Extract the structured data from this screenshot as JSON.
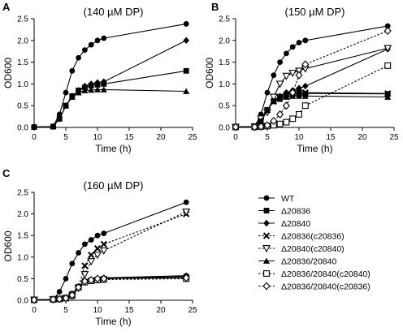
{
  "chart_data": [
    {
      "panel": "A",
      "type": "line",
      "title": "(140 µM DP)",
      "xlabel": "Time (h)",
      "ylabel": "OD600",
      "xlim": [
        0,
        25
      ],
      "ylim": [
        0,
        2.5
      ],
      "x_ticks": [
        0,
        5,
        10,
        15,
        20,
        25
      ],
      "y_ticks": [
        0.0,
        0.5,
        1.0,
        1.5,
        2.0,
        2.5
      ],
      "series": [
        {
          "name": "WT",
          "marker": "circle",
          "dashed": false,
          "x": [
            0,
            3,
            4,
            5,
            6,
            7,
            8,
            9,
            10,
            11,
            24
          ],
          "y": [
            0.01,
            0.02,
            0.3,
            0.8,
            1.3,
            1.6,
            1.78,
            1.9,
            2.0,
            2.05,
            2.38
          ]
        },
        {
          "name": "Δ20836",
          "marker": "square",
          "dashed": false,
          "x": [
            0,
            3,
            4,
            5,
            6,
            7,
            8,
            9,
            10,
            11,
            24
          ],
          "y": [
            0.01,
            0.02,
            0.2,
            0.5,
            0.72,
            0.85,
            0.92,
            0.96,
            0.98,
            1.0,
            1.3
          ]
        },
        {
          "name": "Δ20840",
          "marker": "diamond",
          "dashed": false,
          "x": [
            0,
            3,
            4,
            5,
            6,
            7,
            8,
            9,
            10,
            11,
            24
          ],
          "y": [
            0.01,
            0.02,
            0.2,
            0.5,
            0.72,
            0.85,
            0.95,
            1.0,
            1.03,
            1.05,
            2.0
          ]
        },
        {
          "name": "Δ20836/20840",
          "marker": "triangle",
          "dashed": false,
          "x": [
            0,
            3,
            4,
            5,
            6,
            7,
            8,
            9,
            10,
            11,
            24
          ],
          "y": [
            0.01,
            0.02,
            0.2,
            0.5,
            0.7,
            0.8,
            0.85,
            0.86,
            0.87,
            0.87,
            0.83
          ]
        }
      ]
    },
    {
      "panel": "B",
      "type": "line",
      "title": "(150 µM DP)",
      "xlabel": "Time (h)",
      "ylabel": "OD600",
      "xlim": [
        0,
        25
      ],
      "ylim": [
        0,
        2.5
      ],
      "x_ticks": [
        0,
        5,
        10,
        15,
        20,
        25
      ],
      "y_ticks": [
        0.0,
        0.5,
        1.0,
        1.5,
        2.0,
        2.5
      ],
      "series": [
        {
          "name": "WT",
          "marker": "circle",
          "dashed": false,
          "x": [
            0,
            3,
            4,
            5,
            6,
            7,
            8,
            9,
            10,
            11,
            24
          ],
          "y": [
            0.01,
            0.02,
            0.3,
            0.8,
            1.2,
            1.5,
            1.7,
            1.85,
            1.95,
            2.0,
            2.33
          ]
        },
        {
          "name": "Δ20836",
          "marker": "square",
          "dashed": false,
          "x": [
            0,
            3,
            4,
            5,
            6,
            7,
            8,
            9,
            10,
            11,
            24
          ],
          "y": [
            0.01,
            0.02,
            0.2,
            0.4,
            0.6,
            0.7,
            0.75,
            0.78,
            0.78,
            0.78,
            0.77
          ]
        },
        {
          "name": "Δ20840",
          "marker": "diamond",
          "dashed": false,
          "x": [
            0,
            3,
            4,
            5,
            6,
            7,
            8,
            9,
            10,
            11,
            24
          ],
          "y": [
            0.01,
            0.02,
            0.2,
            0.4,
            0.62,
            0.72,
            0.8,
            0.85,
            0.9,
            0.95,
            1.8
          ]
        },
        {
          "name": "Δ20836(c20836)",
          "marker": "x",
          "dashed": false,
          "x": [
            0,
            3,
            4,
            5,
            6,
            7,
            8,
            9,
            10,
            11,
            24
          ],
          "y": [
            0.01,
            0.02,
            0.15,
            0.4,
            0.6,
            0.7,
            0.75,
            0.78,
            0.8,
            0.8,
            0.78
          ]
        },
        {
          "name": "Δ20840(c20840)",
          "marker": "triangle-down",
          "dashed": false,
          "x": [
            0,
            3,
            4,
            5,
            6,
            7,
            8,
            9,
            10,
            11,
            24
          ],
          "y": [
            0.01,
            0.02,
            0.2,
            0.35,
            0.7,
            1.0,
            1.18,
            1.25,
            1.3,
            1.35,
            1.82
          ]
        },
        {
          "name": "Δ20836/20840",
          "marker": "triangle",
          "dashed": false,
          "x": [
            0,
            3,
            4,
            5,
            6,
            7,
            8,
            9,
            10,
            11,
            24
          ],
          "y": [
            0.01,
            0.02,
            0.15,
            0.4,
            0.6,
            0.65,
            0.7,
            0.72,
            0.72,
            0.72,
            0.7
          ]
        },
        {
          "name": "Δ20836/20840(c20840)",
          "marker": "square-open",
          "dashed": true,
          "x": [
            0,
            3,
            4,
            5,
            6,
            7,
            8,
            9,
            10,
            11,
            24
          ],
          "y": [
            0.01,
            0.01,
            0.02,
            0.03,
            0.05,
            0.08,
            0.12,
            0.2,
            0.3,
            0.5,
            1.42
          ]
        },
        {
          "name": "Δ20836/20840(c20836)",
          "marker": "diamond-open",
          "dashed": true,
          "x": [
            0,
            3,
            4,
            5,
            6,
            7,
            8,
            9,
            10,
            11,
            24
          ],
          "y": [
            0.01,
            0.01,
            0.02,
            0.05,
            0.15,
            0.3,
            0.5,
            0.8,
            1.2,
            1.45,
            2.22
          ]
        }
      ]
    },
    {
      "panel": "C",
      "type": "line",
      "title": "(160 µM DP)",
      "xlabel": "Time (h)",
      "ylabel": "OD600",
      "xlim": [
        0,
        25
      ],
      "ylim": [
        0,
        2.5
      ],
      "x_ticks": [
        0,
        5,
        10,
        15,
        20,
        25
      ],
      "y_ticks": [
        0.0,
        0.5,
        1.0,
        1.5,
        2.0,
        2.5
      ],
      "legend": "right",
      "series": [
        {
          "name": "WT",
          "marker": "circle",
          "dashed": false,
          "x": [
            0,
            3,
            4,
            5,
            6,
            7,
            8,
            9,
            10,
            11,
            24
          ],
          "y": [
            0.01,
            0.02,
            0.2,
            0.5,
            0.85,
            1.1,
            1.3,
            1.4,
            1.5,
            1.55,
            2.27
          ]
        },
        {
          "name": "Δ20836",
          "marker": "square",
          "dashed": false,
          "x": [
            0,
            3,
            4,
            5,
            6,
            7,
            8,
            9,
            10,
            11,
            24
          ],
          "y": [
            0.01,
            0.02,
            0.03,
            0.06,
            0.15,
            0.3,
            0.42,
            0.46,
            0.48,
            0.5,
            0.55
          ]
        },
        {
          "name": "Δ20840",
          "marker": "diamond",
          "dashed": false,
          "x": [
            0,
            3,
            4,
            5,
            6,
            7,
            8,
            9,
            10,
            11,
            24
          ],
          "y": [
            0.01,
            0.02,
            0.03,
            0.06,
            0.15,
            0.32,
            0.44,
            0.48,
            0.5,
            0.52,
            0.57
          ]
        },
        {
          "name": "Δ20836(c20836)",
          "marker": "x",
          "dashed": true,
          "x": [
            0,
            3,
            4,
            5,
            6,
            7,
            8,
            9,
            10,
            11,
            24
          ],
          "y": [
            0.01,
            0.02,
            0.03,
            0.05,
            0.1,
            0.3,
            0.8,
            1.05,
            1.2,
            1.3,
            2.0
          ]
        },
        {
          "name": "Δ20840(c20840)",
          "marker": "triangle-down",
          "dashed": true,
          "x": [
            0,
            3,
            4,
            5,
            6,
            7,
            8,
            9,
            10,
            11,
            24
          ],
          "y": [
            0.01,
            0.02,
            0.03,
            0.05,
            0.1,
            0.28,
            0.6,
            0.9,
            1.05,
            1.15,
            2.05
          ]
        },
        {
          "name": "Δ20836/20840",
          "marker": "triangle",
          "dashed": false,
          "x": [
            0,
            3,
            4,
            5,
            6,
            7,
            8,
            9,
            10,
            11,
            24
          ],
          "y": [
            0.01,
            0.02,
            0.03,
            0.06,
            0.15,
            0.3,
            0.44,
            0.48,
            0.5,
            0.51,
            0.52
          ]
        },
        {
          "name": "Δ20836/20840(c20840)",
          "marker": "square-open",
          "dashed": true,
          "x": [
            0,
            3,
            4,
            5,
            6,
            7,
            8,
            9,
            10,
            11,
            24
          ],
          "y": [
            0.01,
            0.02,
            0.03,
            0.05,
            0.12,
            0.3,
            0.42,
            0.45,
            0.47,
            0.48,
            0.5
          ]
        },
        {
          "name": "Δ20836/20840(c20836)",
          "marker": "diamond-open",
          "dashed": true,
          "x": [
            0,
            3,
            4,
            5,
            6,
            7,
            8,
            9,
            10,
            11,
            24
          ],
          "y": [
            0.01,
            0.02,
            0.03,
            0.05,
            0.12,
            0.3,
            0.44,
            0.47,
            0.5,
            0.5,
            0.52
          ]
        }
      ]
    }
  ]
}
